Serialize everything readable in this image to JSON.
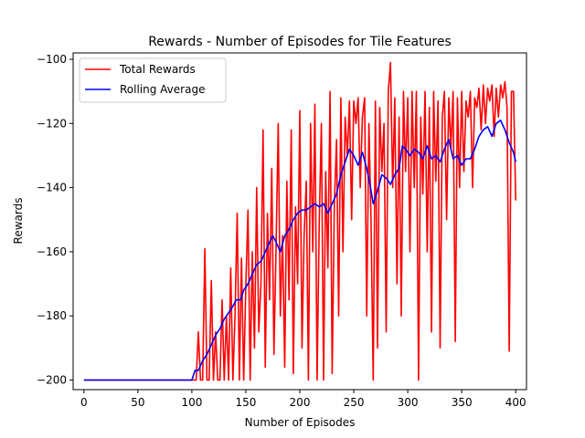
{
  "chart_data": {
    "type": "line",
    "title": "Rewards - Number of Episodes for Tile Features",
    "xlabel": "Number of Episodes",
    "ylabel": "Rewards",
    "xlim": [
      -10,
      410
    ],
    "ylim": [
      -203,
      -98
    ],
    "xticks": [
      0,
      50,
      100,
      150,
      200,
      250,
      300,
      350,
      400
    ],
    "yticks": [
      -200,
      -180,
      -160,
      -140,
      -120,
      -100
    ],
    "grid": false,
    "legend_position": "top-left",
    "series": [
      {
        "name": "Total Rewards",
        "color": "#ff0000",
        "points": [
          [
            0,
            -200
          ],
          [
            100,
            -200
          ],
          [
            104,
            -200
          ],
          [
            106,
            -185
          ],
          [
            108,
            -200
          ],
          [
            110,
            -200
          ],
          [
            112,
            -159
          ],
          [
            114,
            -200
          ],
          [
            116,
            -200
          ],
          [
            118,
            -169
          ],
          [
            120,
            -200
          ],
          [
            122,
            -185
          ],
          [
            124,
            -200
          ],
          [
            126,
            -200
          ],
          [
            128,
            -175
          ],
          [
            130,
            -200
          ],
          [
            132,
            -180
          ],
          [
            134,
            -200
          ],
          [
            136,
            -165
          ],
          [
            138,
            -200
          ],
          [
            140,
            -180
          ],
          [
            142,
            -148
          ],
          [
            144,
            -200
          ],
          [
            146,
            -162
          ],
          [
            148,
            -200
          ],
          [
            150,
            -170
          ],
          [
            152,
            -147
          ],
          [
            154,
            -200
          ],
          [
            156,
            -160
          ],
          [
            158,
            -190
          ],
          [
            160,
            -140
          ],
          [
            162,
            -185
          ],
          [
            164,
            -170
          ],
          [
            166,
            -122
          ],
          [
            168,
            -196
          ],
          [
            170,
            -148
          ],
          [
            172,
            -175
          ],
          [
            174,
            -134
          ],
          [
            176,
            -192
          ],
          [
            178,
            -159
          ],
          [
            180,
            -120
          ],
          [
            182,
            -180
          ],
          [
            184,
            -155
          ],
          [
            186,
            -196
          ],
          [
            188,
            -138
          ],
          [
            190,
            -175
          ],
          [
            192,
            -122
          ],
          [
            194,
            -198
          ],
          [
            196,
            -146
          ],
          [
            198,
            -170
          ],
          [
            200,
            -116
          ],
          [
            202,
            -190
          ],
          [
            204,
            -155
          ],
          [
            206,
            -138
          ],
          [
            208,
            -200
          ],
          [
            210,
            -120
          ],
          [
            212,
            -160
          ],
          [
            214,
            -114
          ],
          [
            216,
            -200
          ],
          [
            218,
            -150
          ],
          [
            220,
            -120
          ],
          [
            222,
            -200
          ],
          [
            224,
            -135
          ],
          [
            226,
            -165
          ],
          [
            228,
            -110
          ],
          [
            230,
            -198
          ],
          [
            232,
            -145
          ],
          [
            234,
            -125
          ],
          [
            236,
            -180
          ],
          [
            238,
            -112
          ],
          [
            240,
            -160
          ],
          [
            242,
            -118
          ],
          [
            244,
            -130
          ],
          [
            246,
            -113
          ],
          [
            248,
            -150
          ],
          [
            250,
            -113
          ],
          [
            252,
            -120
          ],
          [
            254,
            -112
          ],
          [
            256,
            -140
          ],
          [
            258,
            -118
          ],
          [
            260,
            -112
          ],
          [
            262,
            -180
          ],
          [
            264,
            -120
          ],
          [
            266,
            -150
          ],
          [
            268,
            -200
          ],
          [
            270,
            -113
          ],
          [
            272,
            -190
          ],
          [
            274,
            -115
          ],
          [
            276,
            -135
          ],
          [
            278,
            -120
          ],
          [
            280,
            -185
          ],
          [
            282,
            -110
          ],
          [
            284,
            -101
          ],
          [
            286,
            -140
          ],
          [
            288,
            -112
          ],
          [
            290,
            -170
          ],
          [
            292,
            -118
          ],
          [
            294,
            -180
          ],
          [
            296,
            -110
          ],
          [
            298,
            -135
          ],
          [
            300,
            -112
          ],
          [
            302,
            -160
          ],
          [
            304,
            -110
          ],
          [
            306,
            -140
          ],
          [
            308,
            -110
          ],
          [
            310,
            -200
          ],
          [
            312,
            -118
          ],
          [
            314,
            -142
          ],
          [
            316,
            -110
          ],
          [
            318,
            -160
          ],
          [
            320,
            -115
          ],
          [
            322,
            -185
          ],
          [
            324,
            -110
          ],
          [
            326,
            -138
          ],
          [
            328,
            -113
          ],
          [
            330,
            -190
          ],
          [
            332,
            -118
          ],
          [
            334,
            -110
          ],
          [
            336,
            -150
          ],
          [
            338,
            -112
          ],
          [
            340,
            -128
          ],
          [
            342,
            -110
          ],
          [
            344,
            -188
          ],
          [
            346,
            -112
          ],
          [
            348,
            -140
          ],
          [
            350,
            -110
          ],
          [
            352,
            -135
          ],
          [
            354,
            -113
          ],
          [
            356,
            -118
          ],
          [
            358,
            -110
          ],
          [
            360,
            -140
          ],
          [
            362,
            -112
          ],
          [
            364,
            -115
          ],
          [
            366,
            -109
          ],
          [
            368,
            -122
          ],
          [
            370,
            -108
          ],
          [
            372,
            -120
          ],
          [
            374,
            -109
          ],
          [
            376,
            -113
          ],
          [
            378,
            -108
          ],
          [
            380,
            -124
          ],
          [
            382,
            -109
          ],
          [
            384,
            -118
          ],
          [
            386,
            -108
          ],
          [
            388,
            -112
          ],
          [
            390,
            -107
          ],
          [
            392,
            -115
          ],
          [
            394,
            -191
          ],
          [
            396,
            -110
          ],
          [
            398,
            -110
          ],
          [
            400,
            -144
          ]
        ]
      },
      {
        "name": "Rolling Average",
        "color": "#0000ff",
        "points": [
          [
            0,
            -200
          ],
          [
            100,
            -200
          ],
          [
            103,
            -197
          ],
          [
            106,
            -197
          ],
          [
            110,
            -194
          ],
          [
            114,
            -192
          ],
          [
            118,
            -189
          ],
          [
            122,
            -186
          ],
          [
            126,
            -184
          ],
          [
            130,
            -181
          ],
          [
            134,
            -179
          ],
          [
            138,
            -177
          ],
          [
            141,
            -175
          ],
          [
            145,
            -175
          ],
          [
            148,
            -172
          ],
          [
            152,
            -170
          ],
          [
            156,
            -167
          ],
          [
            160,
            -164
          ],
          [
            164,
            -163
          ],
          [
            168,
            -160
          ],
          [
            172,
            -157
          ],
          [
            175,
            -155
          ],
          [
            178,
            -157
          ],
          [
            182,
            -160
          ],
          [
            186,
            -155
          ],
          [
            190,
            -153
          ],
          [
            194,
            -150
          ],
          [
            198,
            -148
          ],
          [
            202,
            -147
          ],
          [
            206,
            -147
          ],
          [
            210,
            -146
          ],
          [
            214,
            -145
          ],
          [
            218,
            -146
          ],
          [
            222,
            -145
          ],
          [
            226,
            -148
          ],
          [
            230,
            -145
          ],
          [
            234,
            -142
          ],
          [
            238,
            -136
          ],
          [
            242,
            -132
          ],
          [
            246,
            -128
          ],
          [
            250,
            -130
          ],
          [
            254,
            -133
          ],
          [
            258,
            -129
          ],
          [
            262,
            -134
          ],
          [
            265,
            -139
          ],
          [
            268,
            -145
          ],
          [
            272,
            -141
          ],
          [
            276,
            -136
          ],
          [
            280,
            -137
          ],
          [
            284,
            -139
          ],
          [
            288,
            -136
          ],
          [
            292,
            -134
          ],
          [
            295,
            -127
          ],
          [
            298,
            -128
          ],
          [
            302,
            -130
          ],
          [
            306,
            -128
          ],
          [
            310,
            -129
          ],
          [
            314,
            -131
          ],
          [
            318,
            -127
          ],
          [
            322,
            -131
          ],
          [
            326,
            -130
          ],
          [
            330,
            -132
          ],
          [
            334,
            -128
          ],
          [
            338,
            -125
          ],
          [
            342,
            -131
          ],
          [
            346,
            -130
          ],
          [
            350,
            -133
          ],
          [
            354,
            -131
          ],
          [
            358,
            -131
          ],
          [
            362,
            -128
          ],
          [
            366,
            -124
          ],
          [
            370,
            -122
          ],
          [
            374,
            -121
          ],
          [
            378,
            -124
          ],
          [
            382,
            -120
          ],
          [
            386,
            -119
          ],
          [
            390,
            -122
          ],
          [
            394,
            -126
          ],
          [
            398,
            -129
          ],
          [
            400,
            -132
          ]
        ]
      }
    ]
  }
}
